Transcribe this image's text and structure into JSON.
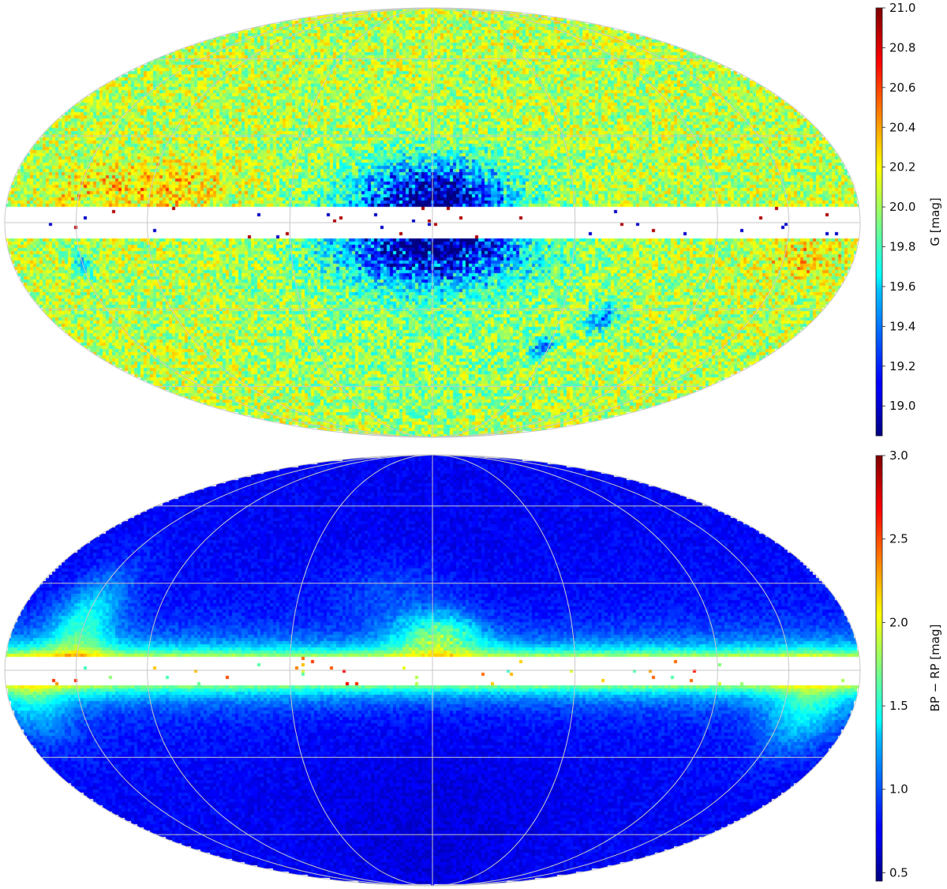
{
  "chart_data": [
    {
      "type": "heatmap",
      "projection": "mollweide",
      "description_units": "galactic sky map",
      "grid": true,
      "masked_band_galactic_latitude_deg": [
        -5,
        5
      ],
      "colormap": "jet",
      "colorbar": {
        "label": "G [mag]",
        "range": [
          18.85,
          21.0
        ],
        "ticks": [
          "19.0",
          "19.2",
          "19.4",
          "19.6",
          "19.8",
          "20.0",
          "20.2",
          "20.4",
          "20.6",
          "20.8",
          "21.0"
        ],
        "tick_values": [
          19.0,
          19.2,
          19.4,
          19.6,
          19.8,
          20.0,
          20.2,
          20.4,
          20.6,
          20.8,
          21.0
        ]
      },
      "background_value": 20.05,
      "features": [
        {
          "name": "bulge",
          "l_deg": 0,
          "b_deg": 8,
          "value": 19.1
        },
        {
          "name": "bulge",
          "l_deg": 0,
          "b_deg": -8,
          "value": 19.1
        },
        {
          "name": "LMC",
          "l_deg": 280,
          "b_deg": -33,
          "value": 19.4
        },
        {
          "name": "SMC",
          "l_deg": 303,
          "b_deg": -44,
          "value": 19.3
        }
      ]
    },
    {
      "type": "heatmap",
      "projection": "mollweide",
      "grid": true,
      "masked_band_galactic_latitude_deg": [
        -5,
        5
      ],
      "colormap": "jet",
      "colorbar": {
        "label": "BP − RP [mag]",
        "range": [
          0.45,
          3.0
        ],
        "ticks": [
          "0.5",
          "1.0",
          "1.5",
          "2.0",
          "2.5",
          "3.0"
        ],
        "tick_values": [
          0.5,
          1.0,
          1.5,
          2.0,
          2.5,
          3.0
        ]
      },
      "background_value": 0.75,
      "features": [
        {
          "name": "plane",
          "b_deg": 7,
          "value": 1.9
        },
        {
          "name": "plane",
          "b_deg": -7,
          "value": 1.4
        },
        {
          "name": "bulge",
          "l_deg": 0,
          "b_deg": 12,
          "value": 1.6
        }
      ]
    }
  ]
}
